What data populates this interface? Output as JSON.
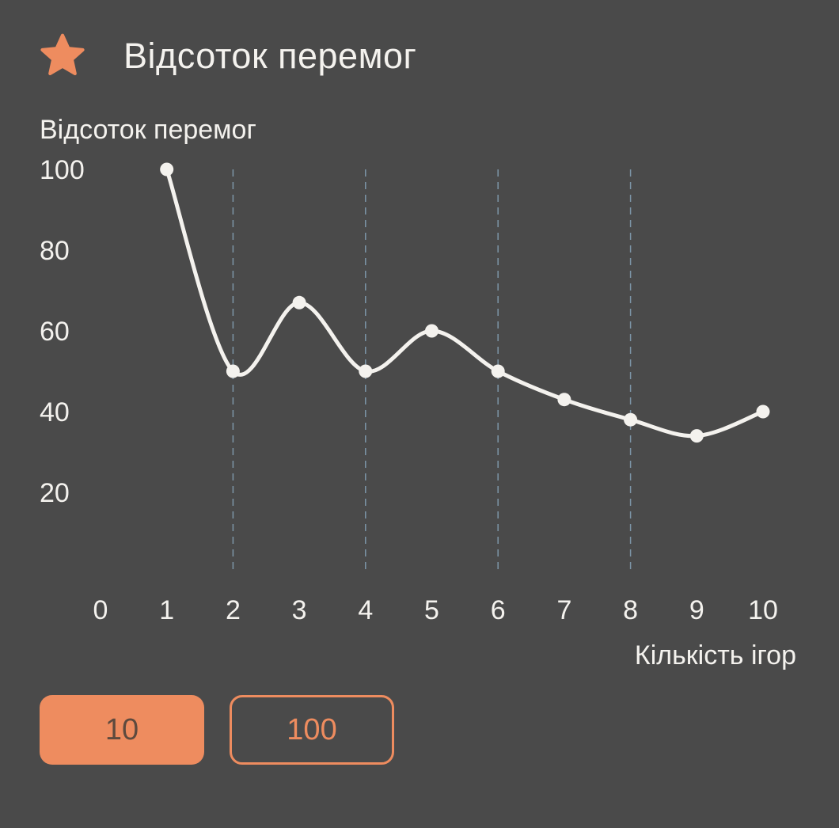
{
  "header": {
    "title": "Відсоток перемог",
    "icon": "star-icon",
    "icon_color": "#ee8c5f"
  },
  "chart_data": {
    "type": "line",
    "ylabel": "Відсоток перемог",
    "xlabel": "Кількість ігор",
    "x_ticks": [
      0,
      1,
      2,
      3,
      4,
      5,
      6,
      7,
      8,
      9,
      10
    ],
    "y_ticks": [
      20,
      40,
      60,
      80,
      100
    ],
    "x": [
      1,
      2,
      3,
      4,
      5,
      6,
      7,
      8,
      9,
      10
    ],
    "values": [
      100,
      50,
      67,
      50,
      60,
      50,
      43,
      38,
      34,
      40
    ],
    "xlim": [
      0,
      10
    ],
    "ylim": [
      0,
      100
    ],
    "grid": "vertical dashed at even x",
    "line_color": "#f4f2ee"
  },
  "buttons": [
    {
      "label": "10",
      "active": true
    },
    {
      "label": "100",
      "active": false
    }
  ]
}
